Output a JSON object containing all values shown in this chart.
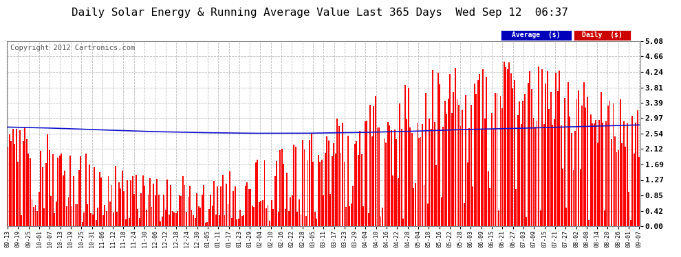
{
  "title": "Daily Solar Energy & Running Average Value Last 365 Days  Wed Sep 12  06:37",
  "copyright": "Copyright 2012 Cartronics.com",
  "yticks": [
    0.0,
    0.42,
    0.85,
    1.27,
    1.69,
    2.12,
    2.54,
    2.97,
    3.39,
    3.81,
    4.24,
    4.66,
    5.08
  ],
  "ymax": 5.08,
  "ymin": 0.0,
  "bar_color": "#FF0000",
  "avg_color": "#1111CC",
  "bg_color": "#FFFFFF",
  "legend_avg_bg": "#0000BB",
  "legend_daily_bg": "#CC0000",
  "legend_avg_text": "Average  ($)",
  "legend_daily_text": "Daily  ($)",
  "title_fontsize": 11.5,
  "copyright_fontsize": 7.5,
  "xtick_labels": [
    "09-13",
    "09-19",
    "09-25",
    "10-01",
    "10-07",
    "10-13",
    "10-19",
    "10-25",
    "10-31",
    "11-06",
    "11-12",
    "11-18",
    "11-24",
    "11-30",
    "12-06",
    "12-12",
    "12-18",
    "12-24",
    "12-30",
    "01-05",
    "01-11",
    "01-17",
    "01-23",
    "01-29",
    "02-04",
    "02-10",
    "02-16",
    "02-22",
    "02-28",
    "03-05",
    "03-11",
    "03-17",
    "03-23",
    "03-29",
    "04-04",
    "04-10",
    "04-16",
    "04-22",
    "04-28",
    "05-04",
    "05-10",
    "05-16",
    "05-22",
    "05-28",
    "06-03",
    "06-09",
    "06-15",
    "06-21",
    "06-27",
    "07-03",
    "07-09",
    "07-15",
    "07-21",
    "07-27",
    "08-02",
    "08-08",
    "08-14",
    "08-20",
    "08-26",
    "09-01",
    "09-07"
  ],
  "num_bars": 365,
  "avg_ctrl_x": [
    0,
    20,
    50,
    80,
    110,
    140,
    170,
    200,
    230,
    260,
    290,
    320,
    364
  ],
  "avg_ctrl_y": [
    2.72,
    2.7,
    2.65,
    2.6,
    2.57,
    2.55,
    2.55,
    2.57,
    2.6,
    2.65,
    2.68,
    2.72,
    2.78
  ]
}
